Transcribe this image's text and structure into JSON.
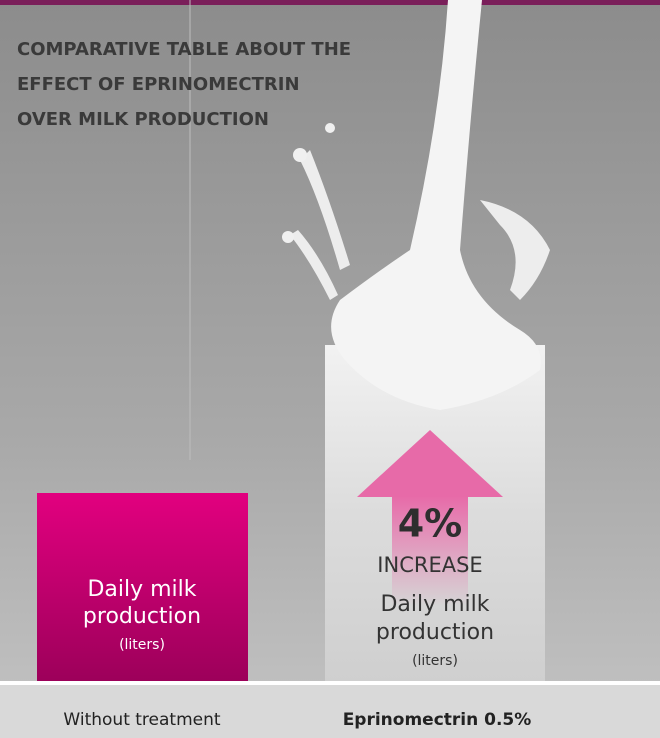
{
  "header": {
    "title_lines": [
      "COMPARATIVE TABLE ABOUT THE",
      "EFFECT OF EPRINOMECTRIN",
      "OVER MILK PRODUCTION"
    ]
  },
  "bars": [
    {
      "label_lines": [
        "Daily milk",
        "production"
      ],
      "unit": "(liters)",
      "category": "Without treatment"
    },
    {
      "increase": "4%",
      "increase_label": "INCREASE",
      "label_lines": [
        "Daily milk",
        "production"
      ],
      "unit": "(liters)",
      "category": "Eprinomectrin 0.5%"
    }
  ]
}
